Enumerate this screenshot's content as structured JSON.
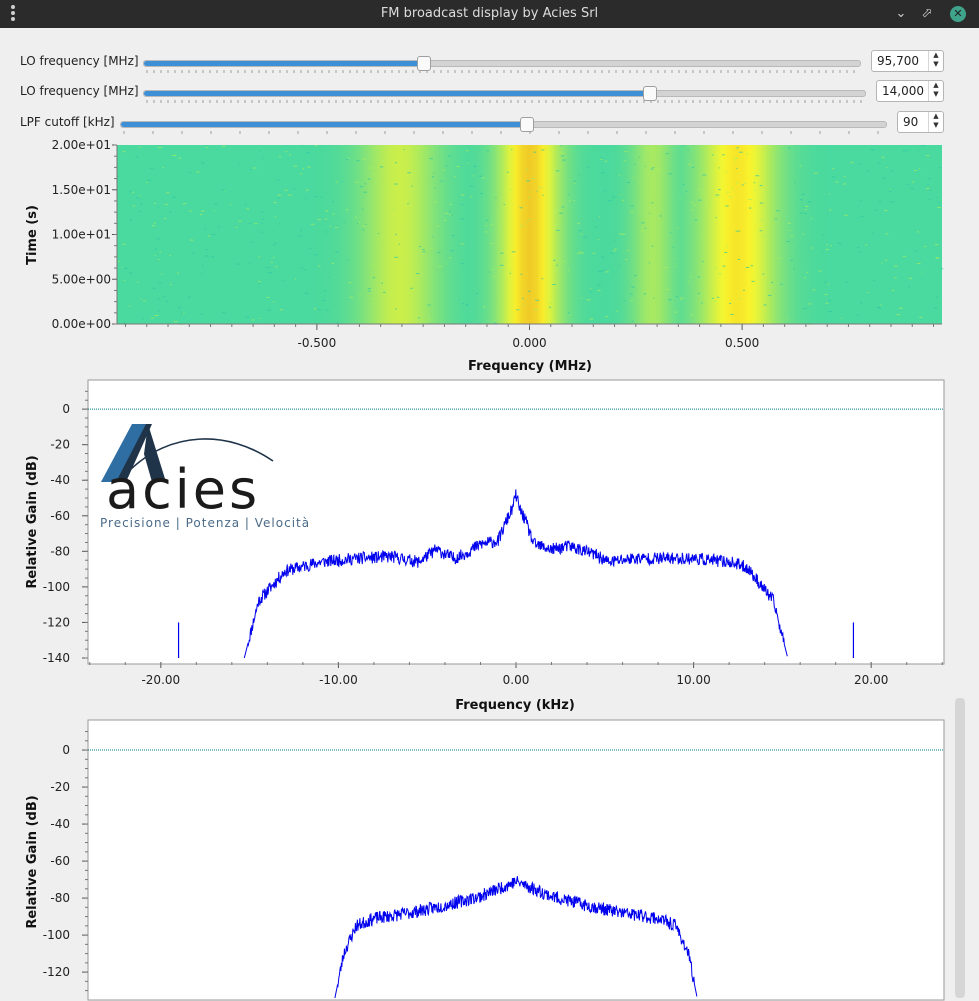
{
  "window": {
    "title": "FM broadcast display by Acies Srl"
  },
  "controls": [
    {
      "label": "LO frequency [MHz]",
      "value": "95,700",
      "fraction": 0.39
    },
    {
      "label": "LO frequency [MHz]",
      "value": "14,000",
      "fraction": 0.7
    },
    {
      "label": "LPF cutoff [kHz]",
      "value": "90",
      "fraction": 0.53
    }
  ],
  "colors": {
    "accent": "#3d8fd6",
    "trace": "#0000ee",
    "ref_line": "#007b8a"
  },
  "logo": {
    "word": "acies",
    "tagline": "Precisione | Potenza | Velocità"
  },
  "chart_data": [
    {
      "type": "heatmap",
      "xlabel": "Frequency (MHz)",
      "ylabel": "Time (s)",
      "x_ticks": [
        "-0.500",
        "0.000",
        "0.500"
      ],
      "x_tick_values": [
        -0.5,
        0,
        0.5
      ],
      "y_ticks": [
        "2.00e+01",
        "1.50e+01",
        "1.00e+01",
        "5.00e+00",
        "0.00e+00"
      ],
      "y_tick_values": [
        20,
        15,
        10,
        5,
        0
      ],
      "xlim": [
        -0.97,
        0.97
      ],
      "ylim": [
        0,
        20
      ],
      "bands": [
        {
          "center": -0.305,
          "width": 0.09,
          "intensity": 0.55
        },
        {
          "center": 0.0,
          "width": 0.07,
          "intensity": 1.0
        },
        {
          "center": 0.29,
          "width": 0.05,
          "intensity": 0.4
        },
        {
          "center": 0.49,
          "width": 0.09,
          "intensity": 0.85
        }
      ]
    },
    {
      "type": "line",
      "xlabel": "Frequency (kHz)",
      "ylabel": "Relative Gain (dB)",
      "x_ticks": [
        "-20.00",
        "-10.00",
        "0.00",
        "10.00",
        "20.00"
      ],
      "x_tick_values": [
        -20,
        -10,
        0,
        10,
        20
      ],
      "y_ticks": [
        "0",
        "-20",
        "-40",
        "-60",
        "-80",
        "-100",
        "-120",
        "-140"
      ],
      "y_tick_values": [
        0,
        -20,
        -40,
        -60,
        -80,
        -100,
        -120,
        -140
      ],
      "xlim": [
        -24.1,
        24.1
      ],
      "ylim": [
        -140,
        13
      ],
      "reference_line": 0,
      "x": [
        -15.3,
        -14.5,
        -13,
        -11,
        -9,
        -7,
        -5.5,
        -4.5,
        -3.5,
        -3,
        -2,
        -1,
        -0.5,
        -0.2,
        0,
        0.2,
        0.5,
        1,
        2,
        3,
        4.5,
        5.2,
        6.5,
        8,
        10,
        12,
        13,
        14.5,
        15.3
      ],
      "y": [
        -140,
        -108,
        -91,
        -86,
        -84,
        -83,
        -86,
        -79,
        -84,
        -82,
        -76,
        -74,
        -62,
        -56,
        -48,
        -56,
        -62,
        -76,
        -79,
        -77,
        -82,
        -86,
        -84,
        -84,
        -84,
        -86,
        -89,
        -108,
        -140
      ],
      "pilot_x": [
        -19,
        19
      ],
      "pilot_y": [
        -120,
        -120
      ]
    },
    {
      "type": "line",
      "ylabel": "Relative Gain (dB)",
      "y_ticks": [
        "0",
        "-20",
        "-40",
        "-60",
        "-80",
        "-100",
        "-120"
      ],
      "y_tick_values": [
        0,
        -20,
        -40,
        -60,
        -80,
        -100,
        -120
      ],
      "xlim": [
        -24.1,
        24.1
      ],
      "ylim": [
        -134,
        13
      ],
      "reference_line": 0,
      "x": [
        -10.2,
        -9.7,
        -9,
        -8,
        -6,
        -4,
        -2,
        -1,
        0,
        1,
        2,
        4,
        6,
        8,
        9,
        9.7,
        10.2
      ],
      "y": [
        -134,
        -110,
        -95,
        -91,
        -88,
        -84,
        -79,
        -75,
        -71,
        -75,
        -79,
        -84,
        -88,
        -91,
        -95,
        -110,
        -134
      ]
    }
  ]
}
